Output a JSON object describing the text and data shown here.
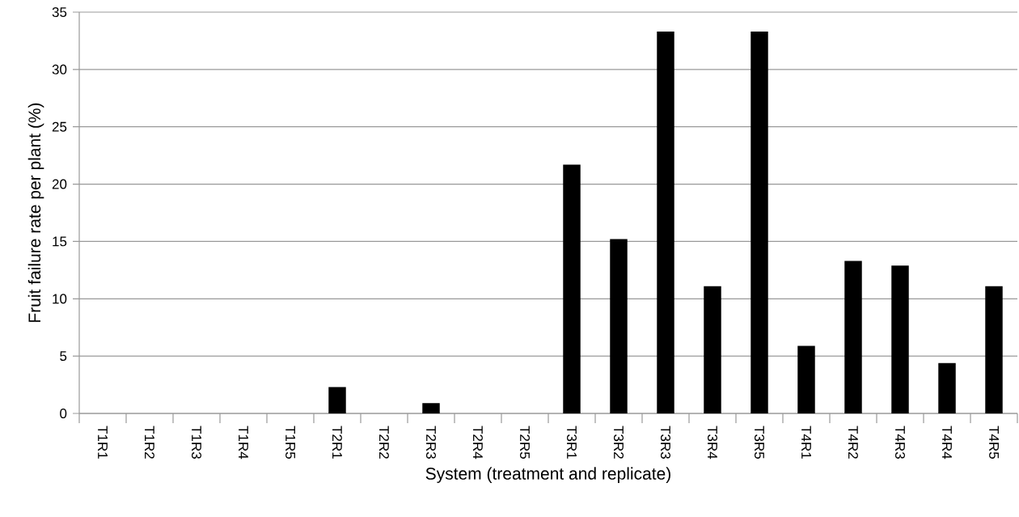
{
  "chart_data": {
    "type": "bar",
    "xlabel": "System (treatment and replicate)",
    "ylabel": "Fruit failure rate per plant (%)",
    "categories": [
      "T1R1",
      "T1R2",
      "T1R3",
      "T1R4",
      "T1R5",
      "T2R1",
      "T2R2",
      "T2R3",
      "T2R4",
      "T2R5",
      "T3R1",
      "T3R2",
      "T3R3",
      "T3R4",
      "T3R5",
      "T4R1",
      "T4R2",
      "T4R3",
      "T4R4",
      "T4R5"
    ],
    "values": [
      0,
      0,
      0,
      0,
      0,
      2.3,
      0,
      0.9,
      0,
      0,
      21.7,
      15.2,
      33.3,
      11.1,
      33.3,
      5.9,
      13.3,
      12.9,
      4.4,
      11.1
    ],
    "color": "#000000",
    "ylim": [
      0,
      35
    ],
    "yticks": [
      0,
      5,
      10,
      15,
      20,
      25,
      30,
      35
    ],
    "grid": "y"
  }
}
